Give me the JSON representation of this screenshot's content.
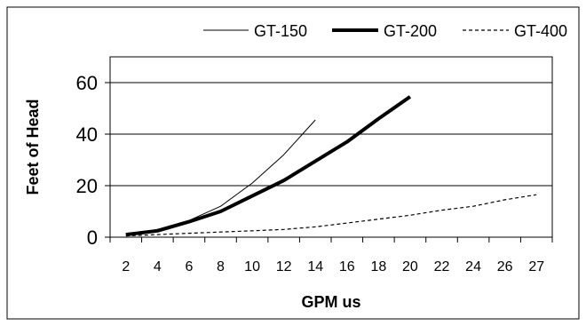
{
  "chart_data": {
    "type": "line",
    "title": "",
    "xlabel": "GPM us",
    "ylabel": "Feet of Head",
    "categories": [
      "2",
      "4",
      "6",
      "8",
      "10",
      "12",
      "14",
      "16",
      "18",
      "20",
      "22",
      "24",
      "26",
      "27"
    ],
    "ylim": [
      0,
      70
    ],
    "yticks": [
      0,
      20,
      40,
      60
    ],
    "grid": "horizontal",
    "legend": "top",
    "series": [
      {
        "name": "GT-150",
        "style": "thin-solid",
        "color": "#000000",
        "values": [
          1,
          3,
          6.5,
          12,
          21,
          32,
          45.5,
          null,
          null,
          null,
          null,
          null,
          null,
          null
        ]
      },
      {
        "name": "GT-200",
        "style": "thick-solid",
        "color": "#000000",
        "values": [
          1,
          2.5,
          6,
          10,
          16,
          22,
          29.5,
          37,
          46,
          54.5,
          null,
          null,
          null,
          null
        ]
      },
      {
        "name": "GT-400",
        "style": "dashed",
        "color": "#000000",
        "values": [
          0.5,
          1,
          1.5,
          2,
          2.5,
          3,
          4,
          5.5,
          7,
          8.5,
          10.5,
          12,
          14.5,
          16.5
        ]
      }
    ]
  }
}
